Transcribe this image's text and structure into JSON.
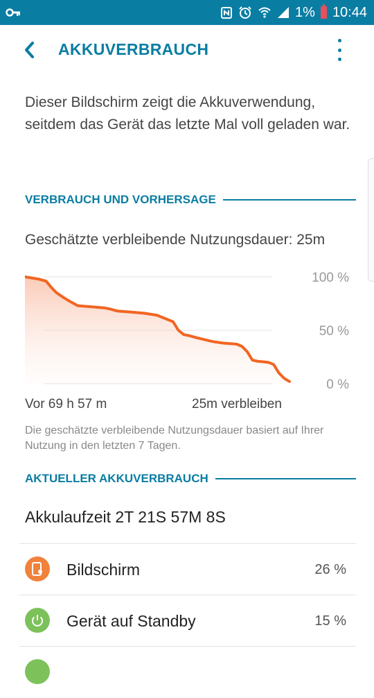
{
  "status_bar": {
    "battery_percent": "1%",
    "time": "10:44"
  },
  "header": {
    "title": "AKKUVERBRAUCH"
  },
  "description": "Dieser Bildschirm zeigt die Akkuverwendung, seitdem das Gerät das letzte Mal voll geladen war.",
  "section_usage": "VERBRAUCH UND VORHERSAGE",
  "estimate_text": "Geschätzte verbleibende Nutzungsdauer: 25m",
  "chart_data": {
    "type": "area",
    "y_tick_labels": [
      "100 %",
      "50 %",
      "0 %"
    ],
    "ylim": [
      0,
      100
    ],
    "x_start_label": "Vor 69 h 57 m",
    "x_end_label": "25m verbleiben",
    "x": [
      0,
      0.05,
      0.08,
      0.1,
      0.12,
      0.15,
      0.17,
      0.2,
      0.25,
      0.3,
      0.32,
      0.35,
      0.4,
      0.45,
      0.5,
      0.52,
      0.56,
      0.58,
      0.6,
      0.62,
      0.65,
      0.7,
      0.72,
      0.75,
      0.8,
      0.82,
      0.84,
      0.86,
      0.88,
      0.92,
      0.94,
      0.96,
      0.98,
      1.0
    ],
    "y": [
      100,
      98,
      96,
      90,
      85,
      80,
      77,
      73,
      72,
      71,
      70,
      68,
      67,
      66,
      64,
      62,
      58,
      50,
      46,
      45,
      43,
      40,
      39,
      38,
      37,
      35,
      30,
      22,
      21,
      20,
      18,
      10,
      5,
      2
    ],
    "color": "#f26522"
  },
  "chart_note": "Die geschätzte verbleibende Nutzungsdauer basiert auf Ihrer Nutzung in den letzten 7 Tagen.",
  "section_current": "AKTUELLER AKKUVERBRAUCH",
  "battery_life": "Akkulaufzeit 2T 21S 57M 8S",
  "usage_items": [
    {
      "name": "Bildschirm",
      "percent": "26 %",
      "color": "#f0823c",
      "icon": "screen-icon"
    },
    {
      "name": "Gerät auf Standby",
      "percent": "15 %",
      "color": "#7cc15a",
      "icon": "power-icon"
    }
  ]
}
